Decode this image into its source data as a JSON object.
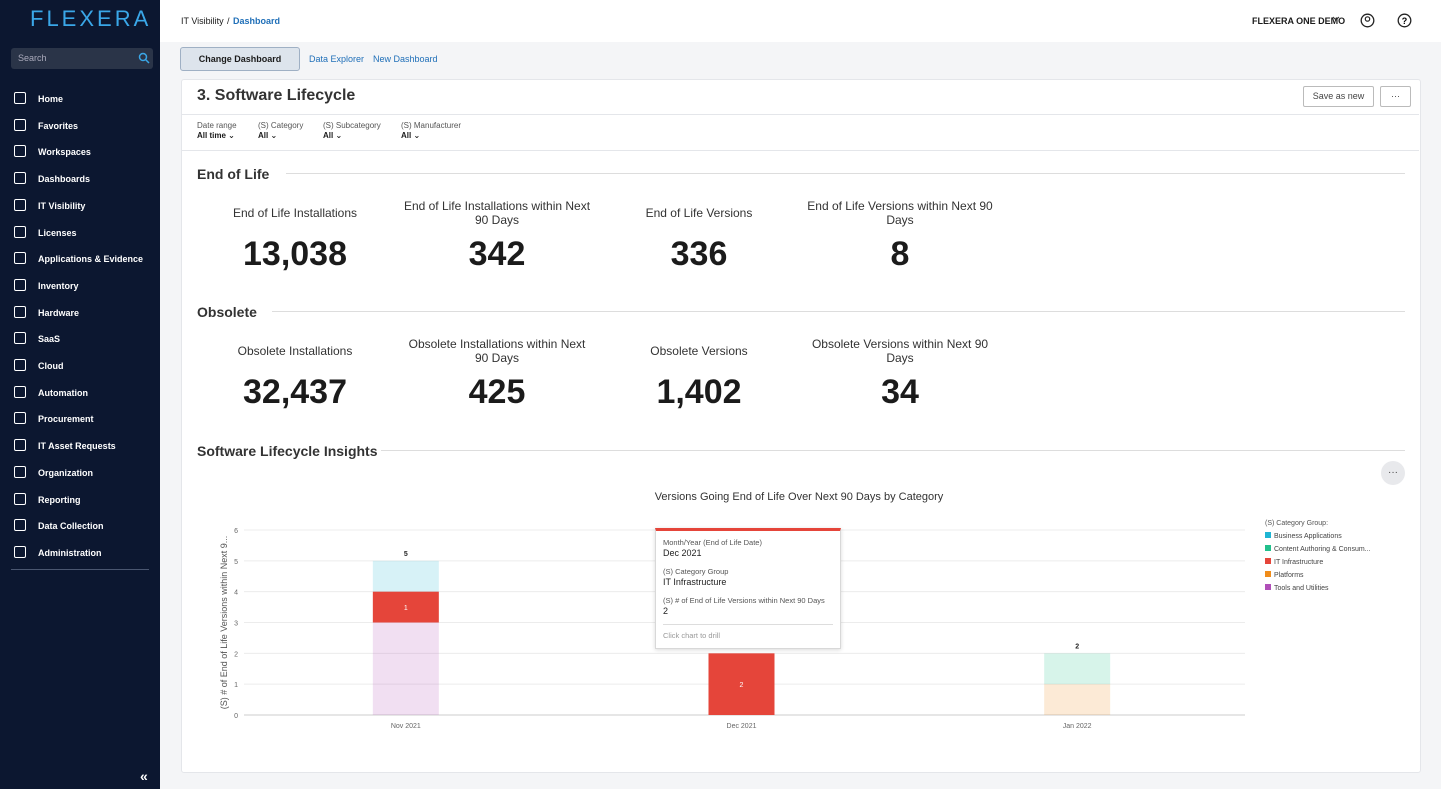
{
  "sidebar": {
    "logo": "FLEXERA",
    "search_placeholder": "Search",
    "nav": [
      "Home",
      "Favorites",
      "Workspaces",
      "Dashboards",
      "IT Visibility",
      "Licenses",
      "Applications & Evidence",
      "Inventory",
      "Hardware",
      "SaaS",
      "Cloud",
      "Automation",
      "Procurement",
      "IT Asset Requests",
      "Organization",
      "Reporting",
      "Data Collection",
      "Administration"
    ],
    "collapse": "«"
  },
  "topbar": {
    "breadcrumb": [
      "IT Visibility",
      "Dashboard"
    ],
    "separator": "/",
    "account": "FLEXERA ONE DEMO"
  },
  "toolbar": {
    "buttons": [
      "Change Dashboard",
      "Data Explorer",
      "New Dashboard"
    ]
  },
  "dashboard": {
    "title": "3. Software Lifecycle",
    "actions": [
      "Save as new",
      "···"
    ],
    "filters": [
      {
        "label": "Date range",
        "value": "All time"
      },
      {
        "label": "(S) Category",
        "value": "All"
      },
      {
        "label": "(S) Subcategory",
        "value": "All"
      },
      {
        "label": "(S) Manufacturer",
        "value": "All"
      }
    ],
    "sections": [
      {
        "title": "End of Life",
        "kpis": [
          {
            "label": "End of Life Installations",
            "value": "13,038"
          },
          {
            "label": "End of Life Installations within Next 90 Days",
            "value": "342"
          },
          {
            "label": "End of Life Versions",
            "value": "336"
          },
          {
            "label": "End of Life Versions within Next 90 Days",
            "value": "8"
          }
        ]
      },
      {
        "title": "Obsolete",
        "kpis": [
          {
            "label": "Obsolete Installations",
            "value": "32,437"
          },
          {
            "label": "Obsolete Installations within Next 90 Days",
            "value": "425"
          },
          {
            "label": "Obsolete Versions",
            "value": "1,402"
          },
          {
            "label": "Obsolete Versions within Next 90 Days",
            "value": "34"
          }
        ]
      }
    ],
    "insights_title": "Software Lifecycle Insights",
    "chart_menu": "···"
  },
  "chart_data": {
    "type": "stacked_bar",
    "title": "Versions Going End of Life Over Next 90 Days by Category",
    "y_label": "(S) # of End of Life Versions within Next 9...",
    "categories": [
      "Nov 2021",
      "Dec 2021",
      "Jan 2022"
    ],
    "legend_title": "(S) Category Group:",
    "series": [
      {
        "name": "Business Applications",
        "color": "#1fb5d3",
        "values": [
          1,
          null,
          null
        ]
      },
      {
        "name": "Content Authoring & Consum...",
        "color": "#22c08c",
        "values": [
          null,
          null,
          1
        ]
      },
      {
        "name": "IT Infrastructure",
        "color": "#e5453a",
        "values": [
          1,
          2,
          null
        ]
      },
      {
        "name": "Platforms",
        "color": "#f08c1a",
        "values": [
          null,
          null,
          1
        ]
      },
      {
        "name": "Tools and Utilities",
        "color": "#b04fb8",
        "values": [
          3,
          null,
          null
        ]
      }
    ],
    "totals": [
      5,
      2,
      2
    ],
    "ylim": [
      0,
      6
    ],
    "yticks": [
      0,
      1,
      2,
      3,
      4,
      5,
      6
    ],
    "grid": true,
    "legend": "right",
    "tooltip": {
      "fields": [
        {
          "label": "Month/Year (End of Life Date)",
          "value": "Dec 2021"
        },
        {
          "label": "(S) Category Group",
          "value": "IT Infrastructure"
        },
        {
          "label": "(S) # of End of Life Versions within Next 90 Days",
          "value": "2"
        }
      ],
      "hint": "Click chart to drill"
    }
  }
}
